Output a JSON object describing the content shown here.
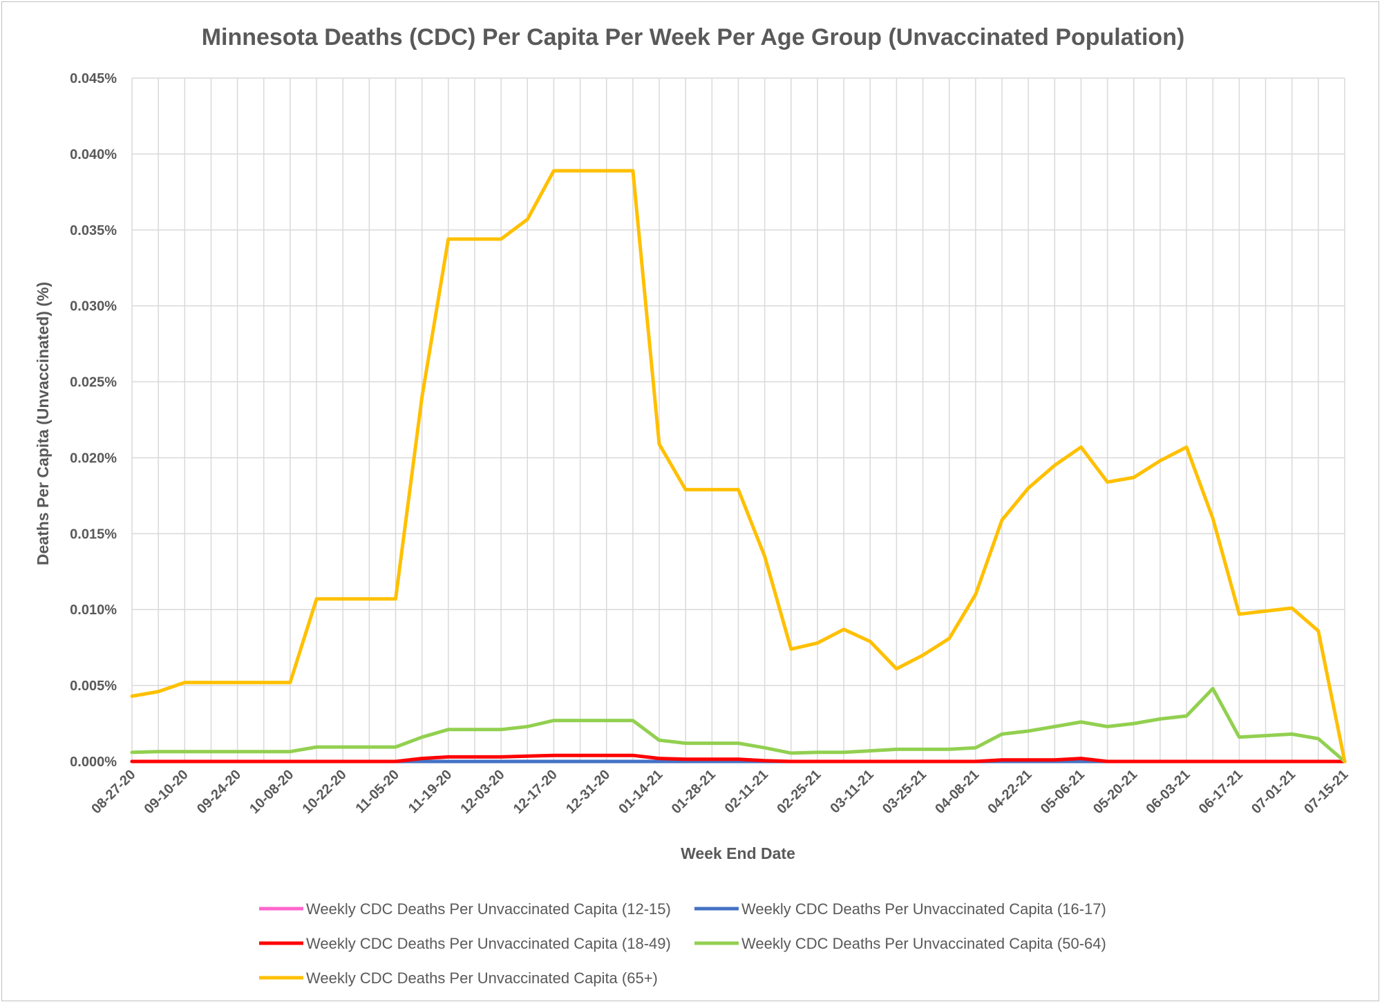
{
  "chart_data": {
    "type": "line",
    "title": "Minnesota Deaths (CDC) Per Capita Per Week Per Age Group (Unvaccinated Population)",
    "xlabel": "Week End Date",
    "ylabel": "Deaths Per Capita (Unvaccinated) (%)",
    "ylim": [
      0,
      0.045
    ],
    "yticks": [
      "0.000%",
      "0.005%",
      "0.010%",
      "0.015%",
      "0.020%",
      "0.025%",
      "0.030%",
      "0.035%",
      "0.040%",
      "0.045%"
    ],
    "grid": true,
    "legend_position": "bottom",
    "x": [
      "08-27-20",
      "09-03-20",
      "09-10-20",
      "09-17-20",
      "09-24-20",
      "10-01-20",
      "10-08-20",
      "10-15-20",
      "10-22-20",
      "10-29-20",
      "11-05-20",
      "11-12-20",
      "11-19-20",
      "11-26-20",
      "12-03-20",
      "12-10-20",
      "12-17-20",
      "12-24-20",
      "12-31-20",
      "01-07-21",
      "01-14-21",
      "01-21-21",
      "01-28-21",
      "02-04-21",
      "02-11-21",
      "02-18-21",
      "02-25-21",
      "03-04-21",
      "03-11-21",
      "03-18-21",
      "03-25-21",
      "04-01-21",
      "04-08-21",
      "04-15-21",
      "04-22-21",
      "04-29-21",
      "05-06-21",
      "05-13-21",
      "05-20-21",
      "05-27-21",
      "06-03-21",
      "06-10-21",
      "06-17-21",
      "06-24-21",
      "07-01-21",
      "07-08-21",
      "07-15-21"
    ],
    "x_tick_labels": [
      "08-27-20",
      "09-10-20",
      "09-24-20",
      "10-08-20",
      "10-22-20",
      "11-05-20",
      "11-19-20",
      "12-03-20",
      "12-17-20",
      "12-31-20",
      "01-14-21",
      "01-28-21",
      "02-11-21",
      "02-25-21",
      "03-11-21",
      "03-25-21",
      "04-08-21",
      "04-22-21",
      "05-06-21",
      "05-20-21",
      "06-03-21",
      "06-17-21",
      "07-01-21",
      "07-15-21"
    ],
    "series": [
      {
        "name": "Weekly CDC Deaths Per Unvaccinated Capita (12-15)",
        "color": "#ff66cc",
        "values": [
          0,
          0,
          0,
          0,
          0,
          0,
          0,
          0,
          0,
          0,
          0,
          0,
          0,
          0,
          0,
          0,
          0,
          0,
          0,
          0,
          0,
          0,
          0,
          0,
          0,
          0,
          0,
          0,
          0,
          0,
          0,
          0,
          0,
          0,
          0,
          0,
          0,
          0,
          0,
          0,
          0,
          0,
          0,
          0,
          0,
          0,
          0
        ]
      },
      {
        "name": "Weekly CDC Deaths Per Unvaccinated Capita (16-17)",
        "color": "#4472c4",
        "values": [
          0,
          0,
          0,
          0,
          0,
          0,
          0,
          0,
          0,
          0,
          0,
          0,
          0,
          0,
          0,
          0,
          0,
          0,
          0,
          0,
          0,
          0,
          0,
          0,
          0,
          0,
          0,
          0,
          0,
          0,
          0,
          0,
          0,
          0,
          0,
          0,
          0,
          0,
          0,
          0,
          0,
          0,
          0,
          0,
          0,
          0,
          0
        ]
      },
      {
        "name": "Weekly CDC Deaths Per Unvaccinated Capita (18-49)",
        "color": "#ff0000",
        "values": [
          0,
          0,
          0,
          0,
          0,
          0,
          0,
          0,
          0,
          0,
          0,
          0.0002,
          0.0003,
          0.0003,
          0.0003,
          0.00035,
          0.0004,
          0.0004,
          0.0004,
          0.0004,
          0.0002,
          0.00015,
          0.00015,
          0.00015,
          5e-05,
          0,
          0,
          0,
          0,
          0,
          0,
          0,
          0,
          0.0001,
          0.0001,
          0.0001,
          0.0002,
          0,
          0,
          0,
          0,
          0,
          0,
          0,
          0,
          0,
          0
        ]
      },
      {
        "name": "Weekly CDC Deaths Per Unvaccinated Capita (50-64)",
        "color": "#92d050",
        "values": [
          0.0006,
          0.00065,
          0.00065,
          0.00065,
          0.00065,
          0.00065,
          0.00065,
          0.00095,
          0.00095,
          0.00095,
          0.00095,
          0.0016,
          0.0021,
          0.0021,
          0.0021,
          0.0023,
          0.0027,
          0.0027,
          0.0027,
          0.0027,
          0.0014,
          0.0012,
          0.0012,
          0.0012,
          0.0009,
          0.00055,
          0.0006,
          0.0006,
          0.0007,
          0.0008,
          0.0008,
          0.0008,
          0.0009,
          0.0018,
          0.002,
          0.0023,
          0.0026,
          0.0023,
          0.0025,
          0.0028,
          0.003,
          0.0048,
          0.0016,
          0.0017,
          0.0018,
          0.0015,
          0
        ]
      },
      {
        "name": "Weekly CDC Deaths Per Unvaccinated Capita (65+)",
        "color": "#ffc000",
        "values": [
          0.0043,
          0.0046,
          0.0052,
          0.0052,
          0.0052,
          0.0052,
          0.0052,
          0.0107,
          0.0107,
          0.0107,
          0.0107,
          0.024,
          0.0344,
          0.0344,
          0.0344,
          0.0357,
          0.0389,
          0.0389,
          0.0389,
          0.0389,
          0.0209,
          0.0179,
          0.0179,
          0.0179,
          0.0135,
          0.0074,
          0.0078,
          0.0087,
          0.0079,
          0.0061,
          0.007,
          0.0081,
          0.011,
          0.0159,
          0.018,
          0.0195,
          0.0207,
          0.0184,
          0.0187,
          0.0198,
          0.0207,
          0.016,
          0.0097,
          0.0099,
          0.0101,
          0.0086,
          0
        ]
      }
    ]
  }
}
